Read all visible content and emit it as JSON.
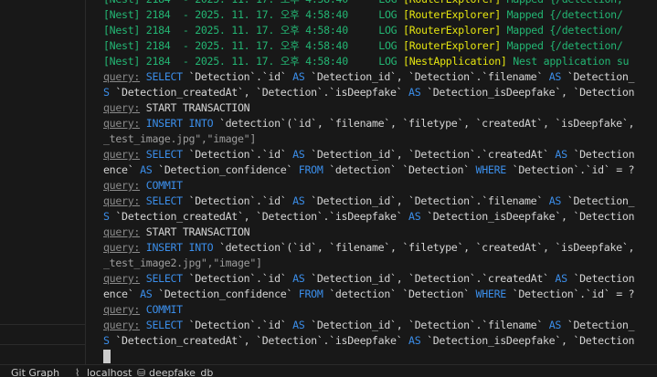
{
  "terminal": {
    "lines": [
      [
        [
          "g",
          "[Nest] 2184  - 2025. 11. 17. 오후 4:58:40     LOG "
        ],
        [
          "y",
          "[RouterExplorer]"
        ],
        [
          "g",
          " Mapped {/detection, "
        ]
      ],
      [
        [
          "g",
          "[Nest] 2184  - 2025. 11. 17. 오후 4:58:40     LOG "
        ],
        [
          "y",
          "[RouterExplorer]"
        ],
        [
          "g",
          " Mapped {/detection/"
        ]
      ],
      [
        [
          "g",
          "[Nest] 2184  - 2025. 11. 17. 오후 4:58:40     LOG "
        ],
        [
          "y",
          "[RouterExplorer]"
        ],
        [
          "g",
          " Mapped {/detection/"
        ]
      ],
      [
        [
          "g",
          "[Nest] 2184  - 2025. 11. 17. 오후 4:58:40     LOG "
        ],
        [
          "y",
          "[RouterExplorer]"
        ],
        [
          "g",
          " Mapped {/detection/"
        ]
      ],
      [
        [
          "g",
          "[Nest] 2184  - 2025. 11. 17. 오후 4:58:40     LOG "
        ],
        [
          "y",
          "[NestApplication]"
        ],
        [
          "g",
          " Nest application su"
        ]
      ],
      [
        [
          "q",
          "query:"
        ],
        [
          "t",
          " "
        ],
        [
          "k",
          "SELECT"
        ],
        [
          "t",
          " `Detection`.`id` "
        ],
        [
          "k",
          "AS"
        ],
        [
          "t",
          " `Detection_id`, `Detection`.`filename` "
        ],
        [
          "k",
          "AS"
        ],
        [
          "t",
          " `Detection_"
        ]
      ],
      [
        [
          "k",
          "S"
        ],
        [
          "t",
          " `Detection_createdAt`, `Detection`.`isDeepfake` "
        ],
        [
          "k",
          "AS"
        ],
        [
          "t",
          " `Detection_isDeepfake`, `Detection"
        ]
      ],
      [
        [
          "q",
          "query:"
        ],
        [
          "t",
          " START TRANSACTION"
        ]
      ],
      [
        [
          "q",
          "query:"
        ],
        [
          "t",
          " "
        ],
        [
          "k",
          "INSERT INTO"
        ],
        [
          "t",
          " `detection`(`id`, `filename`, `filetype`, `createdAt`, `isDeepfake`,"
        ]
      ],
      [
        [
          "d",
          "_test_image.jpg\",\"image\"]"
        ]
      ],
      [
        [
          "q",
          "query:"
        ],
        [
          "t",
          " "
        ],
        [
          "k",
          "SELECT"
        ],
        [
          "t",
          " `Detection`.`id` "
        ],
        [
          "k",
          "AS"
        ],
        [
          "t",
          " `Detection_id`, `Detection`.`createdAt` "
        ],
        [
          "k",
          "AS"
        ],
        [
          "t",
          " `Detection"
        ]
      ],
      [
        [
          "t",
          "ence` "
        ],
        [
          "k",
          "AS"
        ],
        [
          "t",
          " `Detection_confidence` "
        ],
        [
          "k",
          "FROM"
        ],
        [
          "t",
          " `detection` `Detection` "
        ],
        [
          "k",
          "WHERE"
        ],
        [
          "t",
          " `Detection`.`id` = ?"
        ]
      ],
      [
        [
          "q",
          "query:"
        ],
        [
          "t",
          " "
        ],
        [
          "k",
          "COMMIT"
        ]
      ],
      [
        [
          "q",
          "query:"
        ],
        [
          "t",
          " "
        ],
        [
          "k",
          "SELECT"
        ],
        [
          "t",
          " `Detection`.`id` "
        ],
        [
          "k",
          "AS"
        ],
        [
          "t",
          " `Detection_id`, `Detection`.`filename` "
        ],
        [
          "k",
          "AS"
        ],
        [
          "t",
          " `Detection_"
        ]
      ],
      [
        [
          "k",
          "S"
        ],
        [
          "t",
          " `Detection_createdAt`, `Detection`.`isDeepfake` "
        ],
        [
          "k",
          "AS"
        ],
        [
          "t",
          " `Detection_isDeepfake`, `Detection"
        ]
      ],
      [
        [
          "q",
          "query:"
        ],
        [
          "t",
          " START TRANSACTION"
        ]
      ],
      [
        [
          "q",
          "query:"
        ],
        [
          "t",
          " "
        ],
        [
          "k",
          "INSERT INTO"
        ],
        [
          "t",
          " `detection`(`id`, `filename`, `filetype`, `createdAt`, `isDeepfake`,"
        ]
      ],
      [
        [
          "d",
          "_test_image2.jpg\",\"image\"]"
        ]
      ],
      [
        [
          "q",
          "query:"
        ],
        [
          "t",
          " "
        ],
        [
          "k",
          "SELECT"
        ],
        [
          "t",
          " `Detection`.`id` "
        ],
        [
          "k",
          "AS"
        ],
        [
          "t",
          " `Detection_id`, `Detection`.`createdAt` "
        ],
        [
          "k",
          "AS"
        ],
        [
          "t",
          " `Detection"
        ]
      ],
      [
        [
          "t",
          "ence` "
        ],
        [
          "k",
          "AS"
        ],
        [
          "t",
          " `Detection_confidence` "
        ],
        [
          "k",
          "FROM"
        ],
        [
          "t",
          " `detection` `Detection` "
        ],
        [
          "k",
          "WHERE"
        ],
        [
          "t",
          " `Detection`.`id` = ?"
        ]
      ],
      [
        [
          "q",
          "query:"
        ],
        [
          "t",
          " "
        ],
        [
          "k",
          "COMMIT"
        ]
      ],
      [
        [
          "q",
          "query:"
        ],
        [
          "t",
          " "
        ],
        [
          "k",
          "SELECT"
        ],
        [
          "t",
          " `Detection`.`id` "
        ],
        [
          "k",
          "AS"
        ],
        [
          "t",
          " `Detection_id`, `Detection`.`filename` "
        ],
        [
          "k",
          "AS"
        ],
        [
          "t",
          " `Detection_"
        ]
      ],
      [
        [
          "k",
          "S"
        ],
        [
          "t",
          " `Detection_createdAt`, `Detection`.`isDeepfake` "
        ],
        [
          "k",
          "AS"
        ],
        [
          "t",
          " `Detection_isDeepfake`, `Detection"
        ]
      ]
    ]
  },
  "statusbar": {
    "git_graph": "Git Graph",
    "connection": "localhost",
    "connection_icon": "plug-icon",
    "database": "deepfake_db",
    "database_icon": "database-icon"
  },
  "colors": {
    "log_green": "#23b573",
    "context_yellow": "#e5e510",
    "keyword_blue": "#3b8eea",
    "background": "#181818"
  }
}
